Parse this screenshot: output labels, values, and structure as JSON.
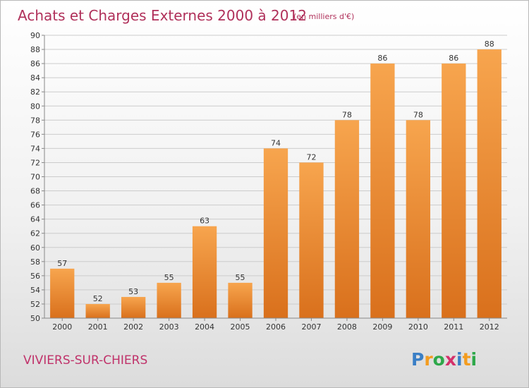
{
  "title": "Achats et Charges Externes 2000 à 2012",
  "subtitle": "(en milliers d'€)",
  "commune": "VIVIERS-SUR-CHIERS",
  "logo": {
    "letters": [
      "P",
      "r",
      "o",
      "x",
      "i",
      "t",
      "i"
    ],
    "colors": [
      "#3a7fc6",
      "#f39c1f",
      "#2ea84a",
      "#d4306a",
      "#3a7fc6",
      "#f39c1f",
      "#2ea84a"
    ]
  },
  "colors": {
    "bar_light": "#f7a54e",
    "bar_dark": "#d9701c",
    "grid": "#cccccc"
  },
  "chart_data": {
    "type": "bar",
    "title": "Achats et Charges Externes 2000 à 2012",
    "subtitle": "(en milliers d'€)",
    "categories": [
      "2000",
      "2001",
      "2002",
      "2003",
      "2004",
      "2005",
      "2006",
      "2007",
      "2008",
      "2009",
      "2010",
      "2011",
      "2012"
    ],
    "values": [
      57,
      52,
      53,
      55,
      63,
      55,
      74,
      72,
      78,
      86,
      78,
      86,
      88
    ],
    "ylim": [
      50,
      90
    ],
    "yticks": [
      50,
      52,
      54,
      56,
      58,
      60,
      62,
      64,
      66,
      68,
      70,
      72,
      74,
      76,
      78,
      80,
      82,
      84,
      86,
      88,
      90
    ],
    "grid": true,
    "data_labels": true,
    "legend": "none"
  }
}
